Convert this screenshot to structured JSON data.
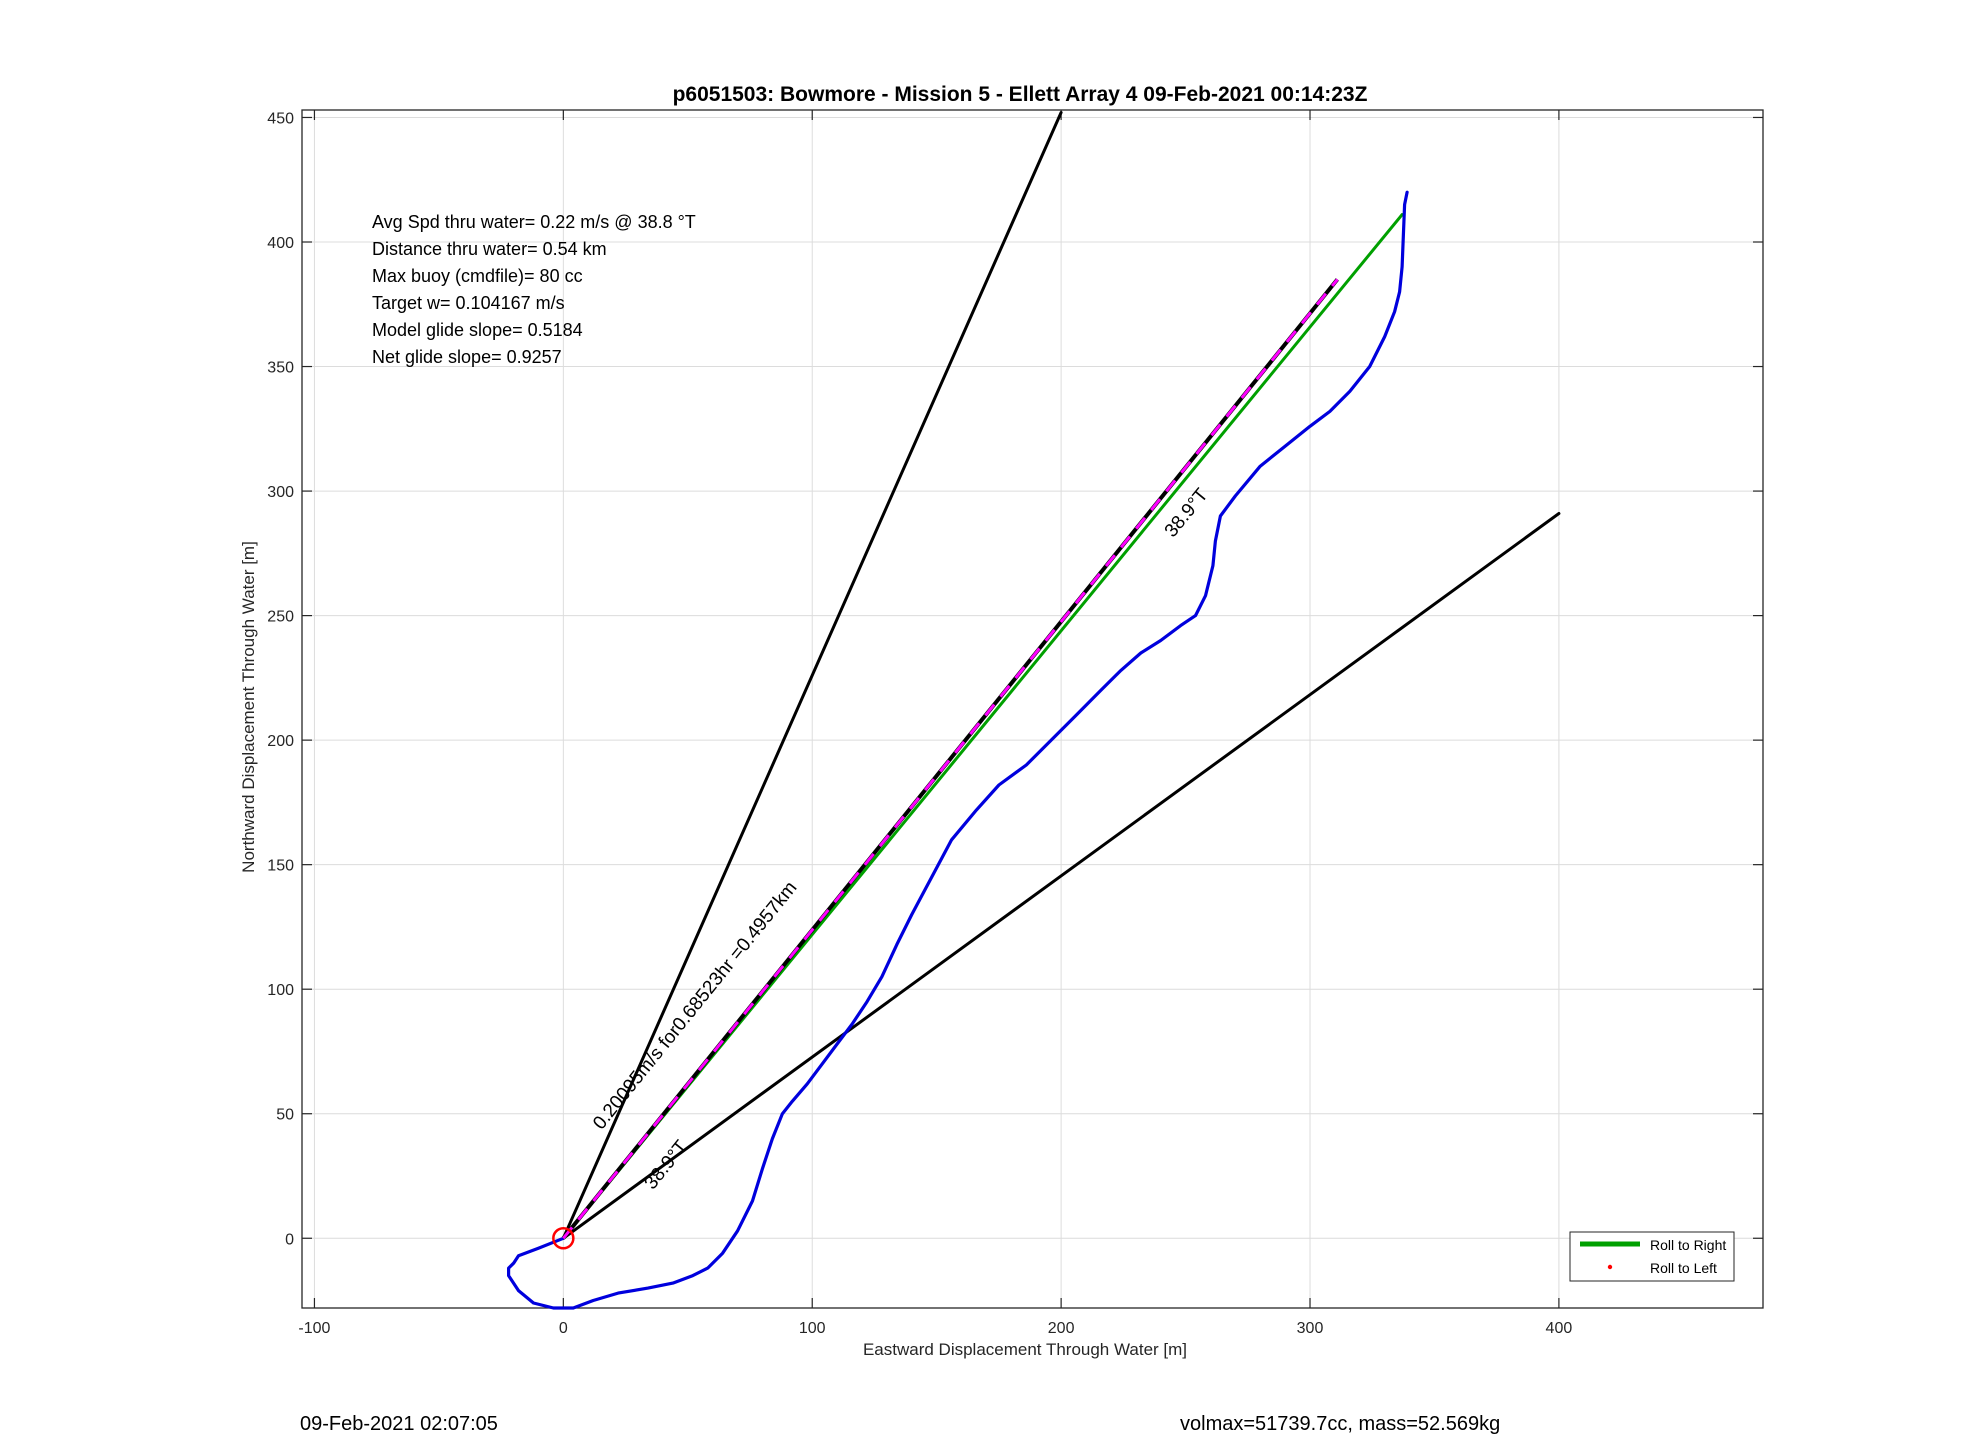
{
  "chart_data": {
    "type": "line",
    "title": "p6051503: Bowmore - Mission 5 - Ellett Array 4 09-Feb-2021 00:14:23Z",
    "xlabel": "Eastward Displacement Through Water [m]",
    "ylabel": "Northward Displacement Through Water [m]",
    "xlim": [
      -105,
      482
    ],
    "ylim": [
      -28,
      453
    ],
    "xticks": [
      -100,
      0,
      100,
      200,
      300,
      400
    ],
    "yticks": [
      0,
      50,
      100,
      150,
      200,
      250,
      300,
      350,
      400,
      450
    ],
    "grid": true,
    "legend": {
      "placement": "bottom-right",
      "entries": [
        {
          "label": "Roll to Right",
          "color": "#00a000"
        },
        {
          "label": "Roll to Left",
          "color": "#ff0000"
        }
      ]
    },
    "annotations": [
      "Avg Spd thru water=  0.22 m/s @  38.8 °T",
      "Distance thru water=  0.54 km",
      "Max buoy (cmdfile)= 80 cc",
      "Target w= 0.104167 m/s",
      "Model glide slope= 0.5184",
      "Net glide slope= 0.9257"
    ],
    "line_labels": {
      "current_label": "0.20095m/s for0.68523hr =0.4957km",
      "current_heading": "38.9°T",
      "track_heading": "38.9°T"
    },
    "series": [
      {
        "role": "track",
        "color": "#0000dd",
        "x": [
          339,
          338,
          337,
          336,
          334,
          330,
          324,
          316,
          308,
          300,
          290,
          280,
          270,
          264,
          262,
          261,
          258,
          254,
          248,
          240,
          232,
          224,
          216,
          206,
          196,
          186,
          175,
          166,
          156,
          148,
          140,
          134,
          128,
          122,
          116,
          110,
          104,
          98,
          92,
          88,
          84,
          80,
          76,
          70,
          64,
          58,
          52,
          44,
          34,
          22,
          12,
          4,
          -4,
          -12,
          -18,
          -22,
          -22,
          -20,
          -18,
          -10,
          0
        ],
        "y": [
          420,
          415,
          390,
          380,
          372,
          362,
          350,
          340,
          332,
          326,
          318,
          310,
          298,
          290,
          280,
          270,
          258,
          250,
          246,
          240,
          235,
          228,
          220,
          210,
          200,
          190,
          182,
          172,
          160,
          145,
          130,
          118,
          105,
          95,
          86,
          78,
          70,
          62,
          55,
          50,
          40,
          28,
          15,
          3,
          -6,
          -12,
          -15,
          -18,
          -20,
          -22,
          -25,
          -28,
          -28,
          -26,
          -21,
          -15,
          -12,
          -10,
          -7,
          -4,
          0
        ]
      },
      {
        "role": "net-heading",
        "color": "#00a000",
        "x": [
          0,
          337
        ],
        "y": [
          0,
          411
        ]
      },
      {
        "role": "current",
        "color": "#000000",
        "dash_color": "#ff00ff",
        "x": [
          0,
          311
        ],
        "y": [
          0,
          385
        ]
      },
      {
        "role": "heading-envelope-upper",
        "color": "#000000",
        "x": [
          0,
          200
        ],
        "y": [
          0,
          452
        ]
      },
      {
        "role": "heading-envelope-lower",
        "color": "#000000",
        "x": [
          0,
          400
        ],
        "y": [
          0,
          291
        ]
      }
    ],
    "origin_marker": {
      "x": 0,
      "y": 0,
      "color": "#ff0000"
    }
  },
  "footer": {
    "left": "09-Feb-2021 02:07:05",
    "right": "volmax=51739.7cc, mass=52.569kg"
  }
}
